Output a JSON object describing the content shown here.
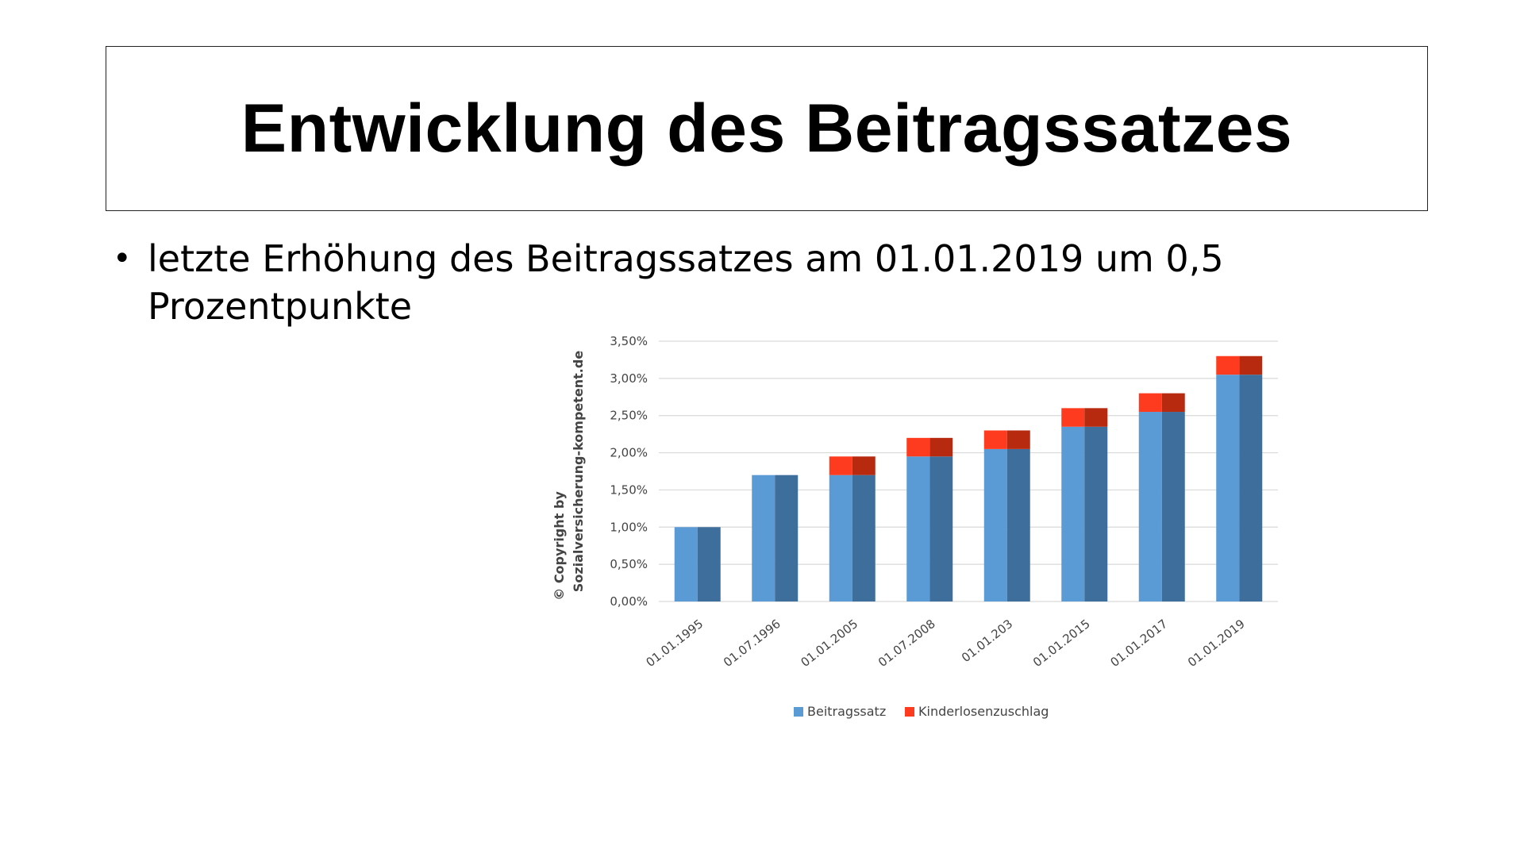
{
  "slide": {
    "title": "Entwicklung des Beitragssatzes",
    "bullet": "letzte Erhöhung des Beitragssatzes  am 01.01.2019 um 0,5 Prozentpunkte"
  },
  "chart_data": {
    "type": "bar",
    "stacked": true,
    "categories": [
      "01.01.1995",
      "01.07.1996",
      "01.01.2005",
      "01.07.2008",
      "01.01.203",
      "01.01.2015",
      "01.01.2017",
      "01.01.2019"
    ],
    "series": [
      {
        "name": "Beitragssatz",
        "values": [
          1.0,
          1.7,
          1.7,
          1.95,
          2.05,
          2.35,
          2.55,
          3.05
        ],
        "color": "#5b9bd5",
        "color_dark": "#3e6f9c"
      },
      {
        "name": "Kinderlosenzuschlag",
        "values": [
          0,
          0,
          0.25,
          0.25,
          0.25,
          0.25,
          0.25,
          0.25
        ],
        "color": "#ff3b1f",
        "color_dark": "#b72a10"
      }
    ],
    "y_ticks": [
      "0,00%",
      "0,50%",
      "1,00%",
      "1,50%",
      "2,00%",
      "2,50%",
      "3,00%",
      "3,50%"
    ],
    "ylim": [
      0,
      3.5
    ],
    "grid": true,
    "legend_position": "bottom",
    "side_text": [
      "© Copyright by",
      "Sozialversicherung-kompetent.de"
    ]
  }
}
